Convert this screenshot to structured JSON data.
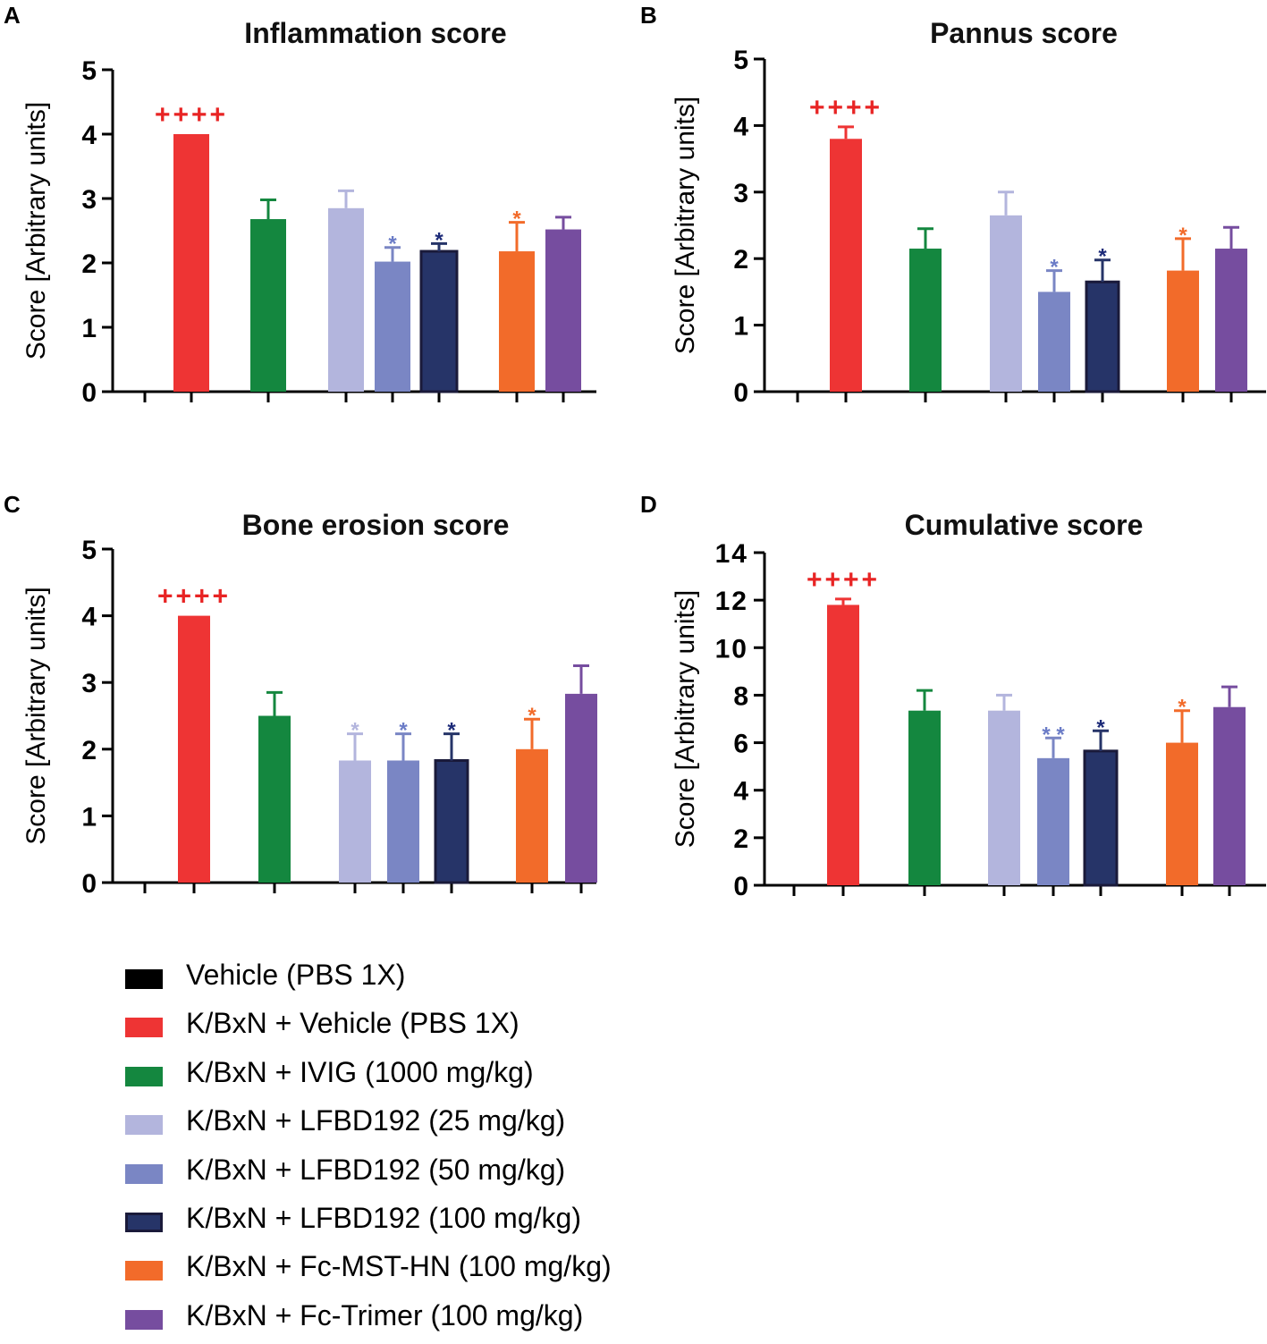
{
  "colors": {
    "Vehicle (PBS 1X)": "#000000",
    "K/BxN + Vehicle (PBS 1X)": "#ee3434",
    "K/BxN + IVIG (1000 mg/kg)": "#14873f",
    "K/BxN + LFBD192 (25 mg/kg)": "#b3b5dd",
    "K/BxN + LFBD192 (50 mg/kg)": "#7a86c4",
    "K/BxN + LFBD192 (100 mg/kg)": "#263468",
    "K/BxN + Fc-MST-HN (100 mg/kg)": "#f26b2a",
    "K/BxN + Fc-Trimer (100 mg/kg)": "#764d9f"
  },
  "legend": [
    {
      "label": "Vehicle (PBS 1X)",
      "color": "#000000"
    },
    {
      "label": "K/BxN + Vehicle (PBS 1X)",
      "color": "#ee3434"
    },
    {
      "label": "K/BxN + IVIG (1000 mg/kg)",
      "color": "#14873f"
    },
    {
      "label": "K/BxN + LFBD192 (25 mg/kg)",
      "color": "#b3b5dd"
    },
    {
      "label": "K/BxN + LFBD192 (50 mg/kg)",
      "color": "#7a86c4"
    },
    {
      "label": "K/BxN + LFBD192 (100 mg/kg)",
      "color": "#263468",
      "border": "#1a1a3a"
    },
    {
      "label": "K/BxN + Fc-MST-HN (100 mg/kg)",
      "color": "#f26b2a"
    },
    {
      "label": "K/BxN + Fc-Trimer (100 mg/kg)",
      "color": "#764d9f"
    }
  ],
  "chart_data": [
    {
      "panel": "A",
      "type": "bar",
      "title": "Inflammation score",
      "ylabel": "Score [Arbitrary units]",
      "ylim": [
        0,
        5
      ],
      "yticks": [
        0,
        1,
        2,
        3,
        4,
        5
      ],
      "categories": [
        "Vehicle (PBS 1X)",
        "K/BxN + Vehicle (PBS 1X)",
        "K/BxN + IVIG (1000 mg/kg)",
        "K/BxN + LFBD192 (25 mg/kg)",
        "K/BxN + LFBD192 (50 mg/kg)",
        "K/BxN + LFBD192 (100 mg/kg)",
        "K/BxN + Fc-MST-HN (100 mg/kg)",
        "K/BxN + Fc-Trimer (100 mg/kg)"
      ],
      "values": [
        0,
        4.0,
        2.68,
        2.85,
        2.02,
        2.18,
        2.18,
        2.52
      ],
      "errors": [
        0,
        0,
        0.3,
        0.27,
        0.22,
        0.12,
        0.45,
        0.19
      ],
      "annotations": [
        "",
        "++++",
        "",
        "",
        "*",
        "*",
        "*",
        ""
      ]
    },
    {
      "panel": "B",
      "type": "bar",
      "title": "Pannus score",
      "ylabel": "Score [Arbitrary units]",
      "ylim": [
        0,
        5
      ],
      "yticks": [
        0,
        1,
        2,
        3,
        4,
        5
      ],
      "categories": [
        "Vehicle (PBS 1X)",
        "K/BxN + Vehicle (PBS 1X)",
        "K/BxN + IVIG (1000 mg/kg)",
        "K/BxN + LFBD192 (25 mg/kg)",
        "K/BxN + LFBD192 (50 mg/kg)",
        "K/BxN + LFBD192 (100 mg/kg)",
        "K/BxN + Fc-MST-HN (100 mg/kg)",
        "K/BxN + Fc-Trimer (100 mg/kg)"
      ],
      "values": [
        0,
        3.8,
        2.15,
        2.65,
        1.5,
        1.65,
        1.82,
        2.15
      ],
      "errors": [
        0,
        0.18,
        0.3,
        0.35,
        0.32,
        0.33,
        0.48,
        0.32
      ],
      "annotations": [
        "",
        "++++",
        "",
        "",
        "*",
        "*",
        "*",
        ""
      ]
    },
    {
      "panel": "C",
      "type": "bar",
      "title": "Bone erosion score",
      "ylabel": "Score [Arbitrary units]",
      "ylim": [
        0,
        5
      ],
      "yticks": [
        0,
        1,
        2,
        3,
        4,
        5
      ],
      "categories": [
        "Vehicle (PBS 1X)",
        "K/BxN + Vehicle (PBS 1X)",
        "K/BxN + IVIG (1000 mg/kg)",
        "K/BxN + LFBD192 (25 mg/kg)",
        "K/BxN + LFBD192 (50 mg/kg)",
        "K/BxN + LFBD192 (100 mg/kg)",
        "K/BxN + Fc-MST-HN (100 mg/kg)",
        "K/BxN + Fc-Trimer (100 mg/kg)"
      ],
      "values": [
        0,
        4.0,
        2.5,
        1.83,
        1.83,
        1.83,
        2.0,
        2.83
      ],
      "errors": [
        0,
        0,
        0.35,
        0.4,
        0.4,
        0.4,
        0.45,
        0.42
      ],
      "annotations": [
        "",
        "++++",
        "",
        "*",
        "*",
        "*",
        "*",
        ""
      ]
    },
    {
      "panel": "D",
      "type": "bar",
      "title": "Cumulative score",
      "ylabel": "Score [Arbitrary units]",
      "ylim": [
        0,
        14
      ],
      "yticks": [
        0,
        2,
        4,
        6,
        8,
        10,
        12,
        14
      ],
      "categories": [
        "Vehicle (PBS 1X)",
        "K/BxN + Vehicle (PBS 1X)",
        "K/BxN + IVIG (1000 mg/kg)",
        "K/BxN + LFBD192 (25 mg/kg)",
        "K/BxN + LFBD192 (50 mg/kg)",
        "K/BxN + LFBD192 (100 mg/kg)",
        "K/BxN + Fc-MST-HN (100 mg/kg)",
        "K/BxN + Fc-Trimer (100 mg/kg)"
      ],
      "values": [
        0,
        11.8,
        7.35,
        7.35,
        5.35,
        5.65,
        6.0,
        7.5
      ],
      "errors": [
        0,
        0.25,
        0.85,
        0.65,
        0.85,
        0.85,
        1.35,
        0.85
      ],
      "annotations": [
        "",
        "++++",
        "",
        "",
        "* *",
        "*",
        "*",
        ""
      ]
    }
  ]
}
